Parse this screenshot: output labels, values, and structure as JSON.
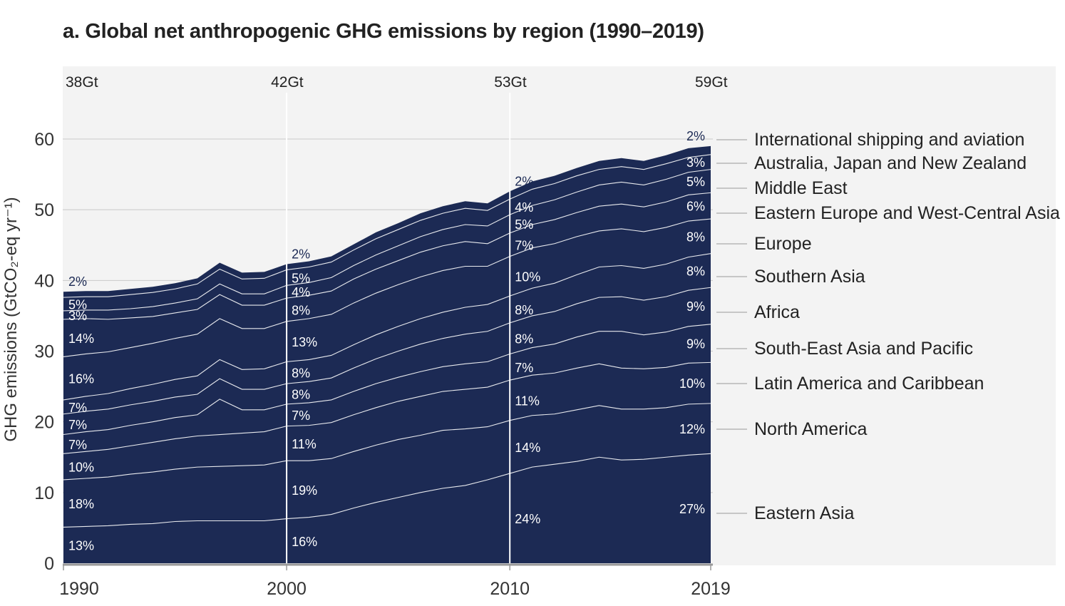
{
  "chart_data": {
    "type": "area",
    "stacked": true,
    "title": "a. Global net anthropogenic GHG emissions by region (1990–2019)",
    "ylabel": "GHG emissions (GtCO₂-eq yr⁻¹)",
    "xlabel": "",
    "ylim": [
      0,
      60
    ],
    "yticks": [
      0,
      10,
      20,
      30,
      40,
      50,
      60
    ],
    "xticks": [
      1990,
      2000,
      2010,
      2019
    ],
    "grid": true,
    "fill_color": "#1c2a54",
    "line_color": "#ffffff",
    "legend_placement": "right",
    "totals_labels": [
      {
        "year": 1990,
        "label": "38Gt"
      },
      {
        "year": 2000,
        "label": "42Gt"
      },
      {
        "year": 2010,
        "label": "53Gt"
      },
      {
        "year": 2019,
        "label": "59Gt"
      }
    ],
    "x": [
      1990,
      1991,
      1992,
      1993,
      1994,
      1995,
      1996,
      1997,
      1998,
      1999,
      2000,
      2001,
      2002,
      2003,
      2004,
      2005,
      2006,
      2007,
      2008,
      2009,
      2010,
      2011,
      2012,
      2013,
      2014,
      2015,
      2016,
      2017,
      2018,
      2019
    ],
    "series": [
      {
        "name": "Eastern Asia",
        "values": [
          5.1,
          5.2,
          5.3,
          5.5,
          5.6,
          5.9,
          6.0,
          6.0,
          6.0,
          6.0,
          6.3,
          6.5,
          6.9,
          7.8,
          8.6,
          9.3,
          10.0,
          10.6,
          11.0,
          11.8,
          12.7,
          13.6,
          14.0,
          14.4,
          15.0,
          14.6,
          14.7,
          15.0,
          15.3,
          15.5
        ],
        "shares": {
          "1990": "13%",
          "2000": "16%",
          "2010": "24%",
          "2019": "27%"
        }
      },
      {
        "name": "North America",
        "values": [
          6.7,
          6.8,
          6.9,
          7.1,
          7.3,
          7.4,
          7.6,
          7.7,
          7.8,
          7.9,
          8.2,
          8.0,
          7.9,
          8.0,
          8.1,
          8.2,
          8.1,
          8.2,
          8.0,
          7.5,
          7.5,
          7.3,
          7.1,
          7.3,
          7.3,
          7.2,
          7.1,
          7.0,
          7.2,
          7.1
        ],
        "shares": {
          "1990": "18%",
          "2000": "19%",
          "2010": "14%",
          "2019": "12%"
        }
      },
      {
        "name": "Latin America and Caribbean",
        "values": [
          3.7,
          3.8,
          3.9,
          4.0,
          4.2,
          4.3,
          4.4,
          4.5,
          4.6,
          4.7,
          4.9,
          5.0,
          5.1,
          5.2,
          5.3,
          5.4,
          5.5,
          5.5,
          5.6,
          5.6,
          5.7,
          5.7,
          5.8,
          5.9,
          5.9,
          5.8,
          5.7,
          5.7,
          5.8,
          5.8
        ],
        "shares": {
          "1990": "10%",
          "2000": "11%",
          "2010": "11%",
          "2019": "10%"
        }
      },
      {
        "name": "South-East Asia and Pacific",
        "values": [
          2.7,
          2.8,
          2.8,
          2.9,
          2.9,
          3.0,
          3.0,
          5.0,
          3.3,
          3.1,
          3.1,
          3.2,
          3.2,
          3.3,
          3.4,
          3.4,
          3.5,
          3.5,
          3.6,
          3.6,
          3.7,
          3.9,
          4.1,
          4.4,
          4.6,
          5.2,
          4.8,
          5.0,
          5.2,
          5.4
        ],
        "shares": {
          "1990": "7%",
          "2000": "7%",
          "2010": "7%",
          "2019": "9%"
        }
      },
      {
        "name": "Africa",
        "values": [
          2.9,
          2.9,
          2.9,
          2.9,
          2.9,
          2.9,
          2.9,
          2.9,
          2.9,
          2.9,
          2.9,
          3.0,
          3.1,
          3.3,
          3.5,
          3.7,
          3.9,
          4.0,
          4.2,
          4.3,
          4.4,
          4.5,
          4.6,
          4.7,
          4.8,
          4.9,
          4.9,
          5.0,
          5.1,
          5.2
        ],
        "shares": {
          "1990": "7%",
          "2000": "8%",
          "2010": "8%",
          "2019": "9%"
        }
      },
      {
        "name": "Southern Asia",
        "values": [
          2.0,
          2.1,
          2.2,
          2.3,
          2.4,
          2.5,
          2.6,
          2.7,
          2.8,
          2.9,
          3.1,
          3.1,
          3.2,
          3.3,
          3.4,
          3.5,
          3.6,
          3.7,
          3.8,
          3.8,
          3.8,
          3.9,
          4.0,
          4.1,
          4.3,
          4.4,
          4.5,
          4.6,
          4.7,
          4.8
        ],
        "shares": {
          "1990": "7%",
          "2000": "8%",
          "2010": "8%",
          "2019": "8%"
        }
      },
      {
        "name": "Europe",
        "values": [
          6.1,
          6.0,
          5.9,
          5.8,
          5.8,
          5.8,
          5.9,
          5.8,
          5.8,
          5.7,
          5.7,
          5.8,
          5.8,
          5.9,
          5.9,
          5.9,
          5.9,
          5.9,
          5.8,
          5.4,
          5.6,
          5.7,
          5.6,
          5.4,
          5.1,
          5.2,
          5.2,
          5.2,
          5.1,
          4.9
        ],
        "shares": {
          "1990": "16%",
          "2000": "13%",
          "2010": "10%",
          "2019": "8%"
        }
      },
      {
        "name": "Eastern Europe and West-Central Asia",
        "values": [
          5.3,
          5.0,
          4.6,
          4.2,
          3.8,
          3.6,
          3.5,
          3.4,
          3.3,
          3.3,
          3.3,
          3.3,
          3.3,
          3.4,
          3.4,
          3.4,
          3.5,
          3.5,
          3.5,
          3.2,
          3.3,
          3.3,
          3.4,
          3.4,
          3.5,
          3.5,
          3.5,
          3.6,
          3.7,
          3.7
        ],
        "shares": {
          "1990": "14%",
          "2000": "8%",
          "2010": "7%",
          "2019": "6%"
        }
      },
      {
        "name": "Middle East",
        "values": [
          1.2,
          1.2,
          1.3,
          1.3,
          1.4,
          1.4,
          1.5,
          1.5,
          1.6,
          1.6,
          1.8,
          1.8,
          1.9,
          1.9,
          2.0,
          2.1,
          2.2,
          2.3,
          2.4,
          2.5,
          2.6,
          2.7,
          2.8,
          2.9,
          3.0,
          3.1,
          3.1,
          3.2,
          3.2,
          3.3
        ],
        "shares": {
          "1990": "3%",
          "2000": "4%",
          "2010": "5%",
          "2019": "5%"
        }
      },
      {
        "name": "Australia, Japan and New Zealand",
        "values": [
          1.9,
          1.9,
          1.9,
          2.0,
          2.0,
          2.0,
          2.1,
          2.1,
          2.1,
          2.2,
          2.2,
          2.2,
          2.2,
          2.2,
          2.3,
          2.3,
          2.3,
          2.3,
          2.3,
          2.2,
          2.2,
          2.3,
          2.3,
          2.3,
          2.2,
          2.2,
          2.2,
          2.2,
          2.1,
          2.1
        ],
        "shares": {
          "1990": "5%",
          "2000": "5%",
          "2010": "4%",
          "2019": "3%"
        }
      },
      {
        "name": "International shipping and aviation",
        "values": [
          0.8,
          0.8,
          0.8,
          0.8,
          0.8,
          0.8,
          0.8,
          0.9,
          0.9,
          0.9,
          0.8,
          0.8,
          0.8,
          0.8,
          0.9,
          0.9,
          1.0,
          1.0,
          1.0,
          1.0,
          1.1,
          1.1,
          1.1,
          1.1,
          1.2,
          1.2,
          1.2,
          1.2,
          1.3,
          1.2
        ],
        "shares": {
          "1990": "2%",
          "2000": "2%",
          "2010": "2%",
          "2019": "2%"
        }
      }
    ]
  }
}
